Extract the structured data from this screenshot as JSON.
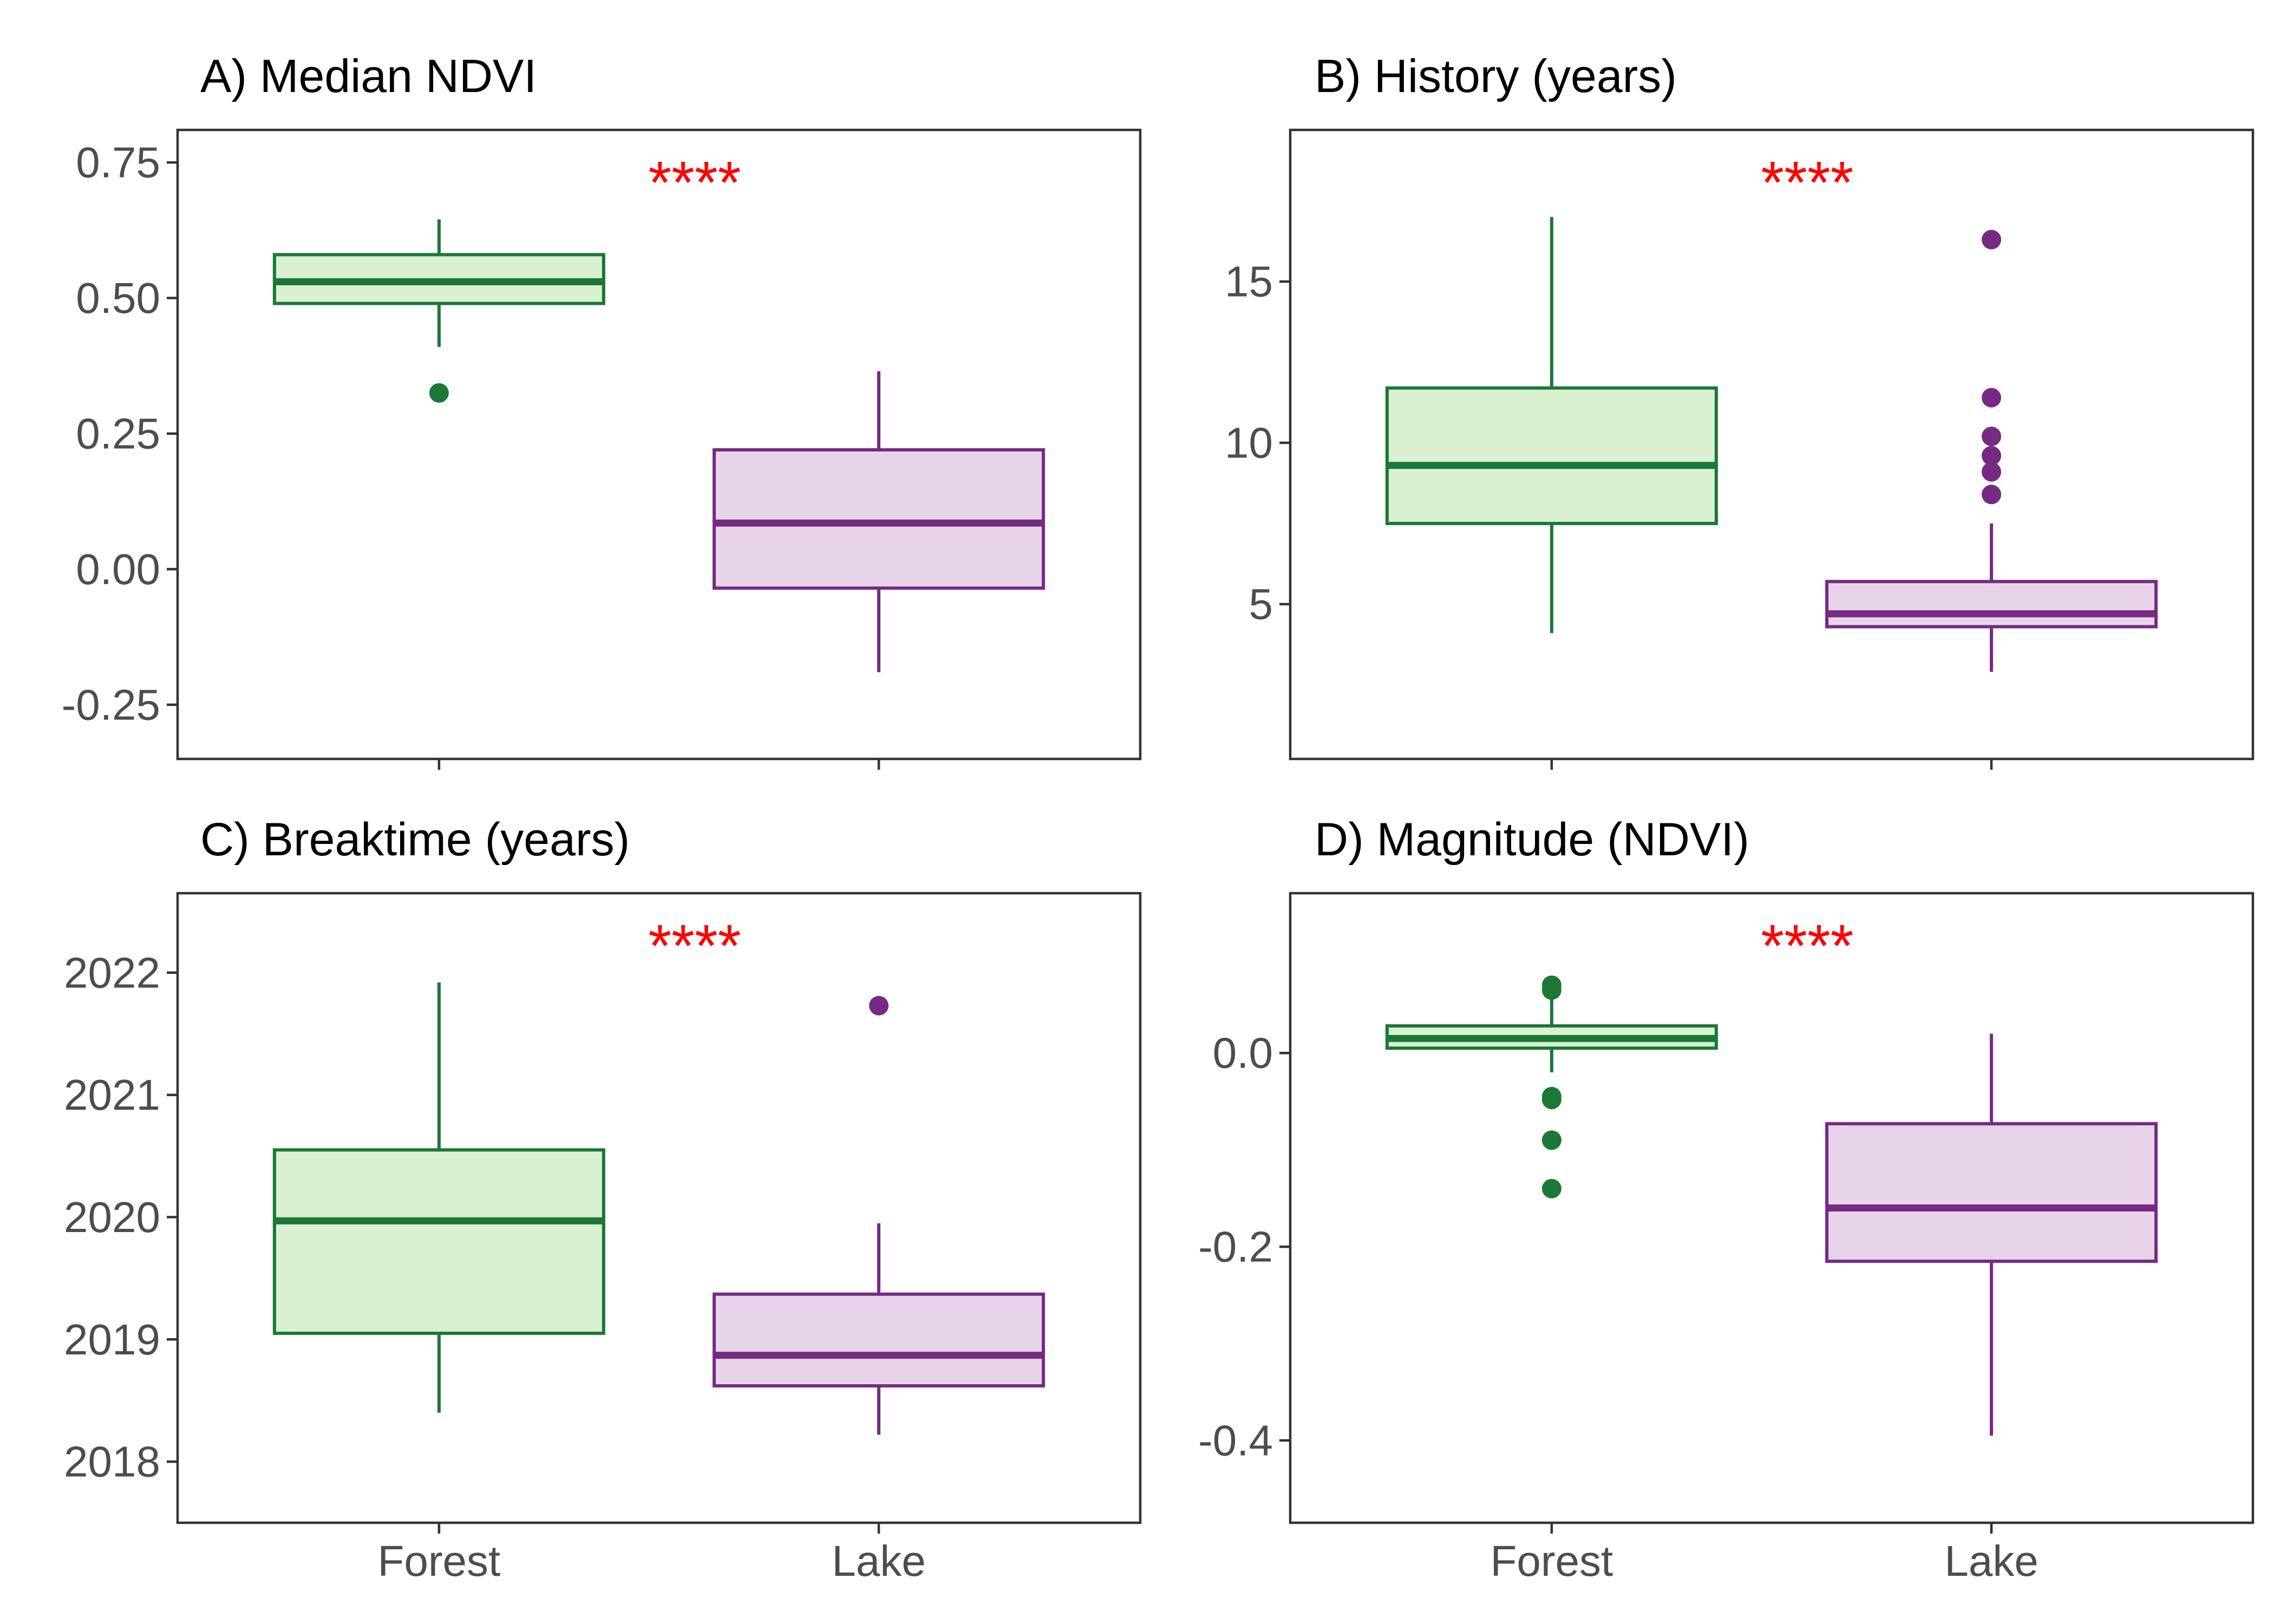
{
  "figure": {
    "group_colors": {
      "Forest": {
        "line": "#1b7837",
        "fill": "#d9f0d3"
      },
      "Lake": {
        "line": "#762a83",
        "fill": "#e7d4e8"
      }
    },
    "significance_color": "#ff0000"
  },
  "chart_data": [
    {
      "type": "box",
      "title": "A) Median NDVI",
      "xlabel": "",
      "ylabel": "",
      "categories": [
        "Forest",
        "Lake"
      ],
      "show_x_tick_labels": false,
      "ylim": [
        -0.35,
        0.81
      ],
      "yticks": [
        0.75,
        0.5,
        0.25,
        0.0,
        -0.25
      ],
      "ytick_labels": [
        "0.75",
        "0.50",
        "0.25",
        "0.00",
        "-0.25"
      ],
      "boxes": [
        {
          "group": "Forest",
          "whisker_low": 0.41,
          "q1": 0.49,
          "median": 0.53,
          "q3": 0.58,
          "whisker_high": 0.645,
          "outliers": [
            0.325
          ]
        },
        {
          "group": "Lake",
          "whisker_low": -0.19,
          "q1": -0.035,
          "median": 0.085,
          "q3": 0.22,
          "whisker_high": 0.365,
          "outliers": []
        }
      ],
      "significance": "****",
      "grid": false
    },
    {
      "type": "box",
      "title": "B) History (years)",
      "xlabel": "",
      "ylabel": "",
      "categories": [
        "Forest",
        "Lake"
      ],
      "show_x_tick_labels": false,
      "ylim": [
        0.2,
        19.7
      ],
      "yticks": [
        15,
        10,
        5
      ],
      "ytick_labels": [
        "15",
        "10",
        "5"
      ],
      "boxes": [
        {
          "group": "Forest",
          "whisker_low": 4.1,
          "q1": 7.5,
          "median": 9.3,
          "q3": 11.7,
          "whisker_high": 17.0,
          "outliers": []
        },
        {
          "group": "Lake",
          "whisker_low": 2.9,
          "q1": 4.3,
          "median": 4.7,
          "q3": 5.7,
          "whisker_high": 7.5,
          "outliers": [
            8.4,
            9.1,
            9.6,
            10.2,
            11.4,
            16.3
          ]
        }
      ],
      "significance": "****",
      "grid": false
    },
    {
      "type": "box",
      "title": "C) Breaktime (years)",
      "xlabel": "",
      "ylabel": "",
      "categories": [
        "Forest",
        "Lake"
      ],
      "show_x_tick_labels": true,
      "ylim": [
        2017.5,
        2022.65
      ],
      "yticks": [
        2022,
        2021,
        2020,
        2019,
        2018
      ],
      "ytick_labels": [
        "2022",
        "2021",
        "2020",
        "2019",
        "2018"
      ],
      "boxes": [
        {
          "group": "Forest",
          "whisker_low": 2018.4,
          "q1": 2019.05,
          "median": 2019.97,
          "q3": 2020.55,
          "whisker_high": 2021.92,
          "outliers": []
        },
        {
          "group": "Lake",
          "whisker_low": 2018.22,
          "q1": 2018.62,
          "median": 2018.87,
          "q3": 2019.37,
          "whisker_high": 2019.95,
          "outliers": [
            2021.73
          ]
        }
      ],
      "significance": "****",
      "grid": false
    },
    {
      "type": "box",
      "title": "D) Magnitude (NDVI)",
      "xlabel": "",
      "ylabel": "",
      "categories": [
        "Forest",
        "Lake"
      ],
      "show_x_tick_labels": true,
      "ylim": [
        -0.485,
        0.165
      ],
      "yticks": [
        0.0,
        -0.2,
        -0.4
      ],
      "ytick_labels": [
        "0.0",
        "-0.2",
        "-0.4"
      ],
      "boxes": [
        {
          "group": "Forest",
          "whisker_low": -0.02,
          "q1": 0.005,
          "median": 0.015,
          "q3": 0.028,
          "whisker_high": 0.06,
          "outliers": [
            0.07,
            0.065,
            -0.045,
            -0.048,
            -0.09,
            -0.14
          ]
        },
        {
          "group": "Lake",
          "whisker_low": -0.395,
          "q1": -0.215,
          "median": -0.16,
          "q3": -0.073,
          "whisker_high": 0.02,
          "outliers": []
        }
      ],
      "significance": "****",
      "grid": false
    }
  ]
}
